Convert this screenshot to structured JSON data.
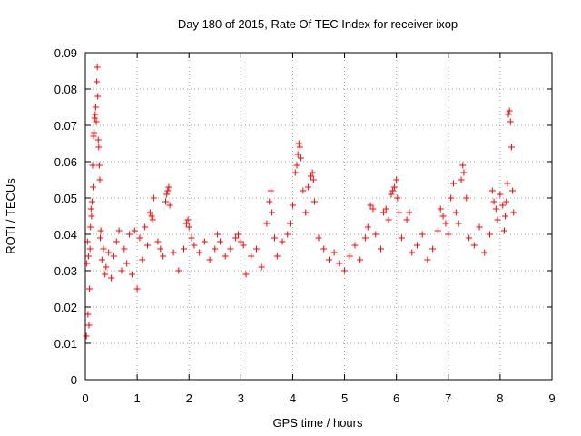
{
  "chart_data": {
    "type": "scatter",
    "title": "Day 180 of 2015, Rate Of TEC Index for receiver ixop",
    "xlabel": "GPS time / hours",
    "ylabel": "ROTI / TECUs",
    "xlim": [
      0,
      9
    ],
    "ylim": [
      0,
      0.09
    ],
    "x_ticks": [
      0,
      1,
      2,
      3,
      4,
      5,
      6,
      7,
      8,
      9
    ],
    "y_ticks": [
      0,
      0.01,
      0.02,
      0.03,
      0.04,
      0.05,
      0.06,
      0.07,
      0.08,
      0.09
    ],
    "x_tick_labels": [
      "0",
      "1",
      "2",
      "3",
      "4",
      "5",
      "6",
      "7",
      "8",
      "9"
    ],
    "y_tick_labels": [
      "0",
      "0.01",
      "0.02",
      "0.03",
      "0.04",
      "0.05",
      "0.06",
      "0.07",
      "0.08",
      "0.09"
    ],
    "grid": true,
    "marker": "plus",
    "color": "#ff0000",
    "series": [
      {
        "name": "ROTI",
        "points": [
          [
            0.02,
            0.012
          ],
          [
            0.03,
            0.032
          ],
          [
            0.04,
            0.038
          ],
          [
            0.05,
            0.018
          ],
          [
            0.06,
            0.034
          ],
          [
            0.07,
            0.015
          ],
          [
            0.08,
            0.025
          ],
          [
            0.09,
            0.036
          ],
          [
            0.1,
            0.042
          ],
          [
            0.11,
            0.047
          ],
          [
            0.12,
            0.045
          ],
          [
            0.13,
            0.049
          ],
          [
            0.14,
            0.059
          ],
          [
            0.15,
            0.053
          ],
          [
            0.16,
            0.067
          ],
          [
            0.17,
            0.068
          ],
          [
            0.18,
            0.072
          ],
          [
            0.19,
            0.073
          ],
          [
            0.2,
            0.075
          ],
          [
            0.21,
            0.071
          ],
          [
            0.22,
            0.082
          ],
          [
            0.23,
            0.086
          ],
          [
            0.24,
            0.078
          ],
          [
            0.25,
            0.066
          ],
          [
            0.26,
            0.064
          ],
          [
            0.27,
            0.059
          ],
          [
            0.28,
            0.055
          ],
          [
            0.29,
            0.039
          ],
          [
            0.3,
            0.041
          ],
          [
            0.32,
            0.033
          ],
          [
            0.35,
            0.036
          ],
          [
            0.38,
            0.029
          ],
          [
            0.4,
            0.031
          ],
          [
            0.45,
            0.035
          ],
          [
            0.5,
            0.028
          ],
          [
            0.55,
            0.034
          ],
          [
            0.6,
            0.038
          ],
          [
            0.65,
            0.041
          ],
          [
            0.7,
            0.03
          ],
          [
            0.75,
            0.036
          ],
          [
            0.8,
            0.032
          ],
          [
            0.85,
            0.04
          ],
          [
            0.9,
            0.029
          ],
          [
            0.95,
            0.041
          ],
          [
            1.0,
            0.025
          ],
          [
            1.05,
            0.039
          ],
          [
            1.1,
            0.033
          ],
          [
            1.15,
            0.042
          ],
          [
            1.2,
            0.037
          ],
          [
            1.25,
            0.046
          ],
          [
            1.28,
            0.045
          ],
          [
            1.3,
            0.044
          ],
          [
            1.32,
            0.05
          ],
          [
            1.4,
            0.038
          ],
          [
            1.45,
            0.036
          ],
          [
            1.5,
            0.034
          ],
          [
            1.55,
            0.049
          ],
          [
            1.57,
            0.051
          ],
          [
            1.59,
            0.052
          ],
          [
            1.61,
            0.053
          ],
          [
            1.63,
            0.048
          ],
          [
            1.7,
            0.035
          ],
          [
            1.8,
            0.03
          ],
          [
            1.9,
            0.036
          ],
          [
            1.95,
            0.043
          ],
          [
            1.98,
            0.044
          ],
          [
            2.0,
            0.042
          ],
          [
            2.05,
            0.039
          ],
          [
            2.1,
            0.037
          ],
          [
            2.2,
            0.035
          ],
          [
            2.3,
            0.038
          ],
          [
            2.4,
            0.033
          ],
          [
            2.5,
            0.036
          ],
          [
            2.55,
            0.04
          ],
          [
            2.6,
            0.038
          ],
          [
            2.7,
            0.034
          ],
          [
            2.8,
            0.036
          ],
          [
            2.9,
            0.039
          ],
          [
            2.95,
            0.04
          ],
          [
            3.0,
            0.038
          ],
          [
            3.05,
            0.037
          ],
          [
            3.1,
            0.029
          ],
          [
            3.2,
            0.034
          ],
          [
            3.3,
            0.036
          ],
          [
            3.4,
            0.031
          ],
          [
            3.5,
            0.043
          ],
          [
            3.55,
            0.049
          ],
          [
            3.58,
            0.052
          ],
          [
            3.6,
            0.046
          ],
          [
            3.65,
            0.039
          ],
          [
            3.7,
            0.034
          ],
          [
            3.8,
            0.038
          ],
          [
            3.9,
            0.04
          ],
          [
            3.95,
            0.043
          ],
          [
            4.0,
            0.048
          ],
          [
            4.05,
            0.057
          ],
          [
            4.08,
            0.059
          ],
          [
            4.1,
            0.062
          ],
          [
            4.12,
            0.065
          ],
          [
            4.14,
            0.064
          ],
          [
            4.16,
            0.061
          ],
          [
            4.2,
            0.052
          ],
          [
            4.25,
            0.046
          ],
          [
            4.3,
            0.053
          ],
          [
            4.35,
            0.056
          ],
          [
            4.38,
            0.057
          ],
          [
            4.4,
            0.055
          ],
          [
            4.42,
            0.049
          ],
          [
            4.5,
            0.039
          ],
          [
            4.6,
            0.036
          ],
          [
            4.7,
            0.033
          ],
          [
            4.8,
            0.035
          ],
          [
            4.9,
            0.032
          ],
          [
            5.0,
            0.03
          ],
          [
            5.1,
            0.034
          ],
          [
            5.2,
            0.037
          ],
          [
            5.3,
            0.033
          ],
          [
            5.4,
            0.039
          ],
          [
            5.45,
            0.042
          ],
          [
            5.5,
            0.048
          ],
          [
            5.55,
            0.047
          ],
          [
            5.6,
            0.04
          ],
          [
            5.7,
            0.036
          ],
          [
            5.75,
            0.046
          ],
          [
            5.8,
            0.047
          ],
          [
            5.85,
            0.044
          ],
          [
            5.9,
            0.051
          ],
          [
            5.93,
            0.052
          ],
          [
            5.96,
            0.053
          ],
          [
            6.0,
            0.055
          ],
          [
            6.02,
            0.05
          ],
          [
            6.05,
            0.046
          ],
          [
            6.1,
            0.039
          ],
          [
            6.2,
            0.044
          ],
          [
            6.25,
            0.046
          ],
          [
            6.3,
            0.035
          ],
          [
            6.4,
            0.037
          ],
          [
            6.5,
            0.04
          ],
          [
            6.6,
            0.033
          ],
          [
            6.7,
            0.036
          ],
          [
            6.8,
            0.041
          ],
          [
            6.85,
            0.047
          ],
          [
            6.9,
            0.045
          ],
          [
            6.95,
            0.043
          ],
          [
            7.0,
            0.04
          ],
          [
            7.05,
            0.05
          ],
          [
            7.1,
            0.054
          ],
          [
            7.15,
            0.046
          ],
          [
            7.2,
            0.043
          ],
          [
            7.25,
            0.055
          ],
          [
            7.28,
            0.059
          ],
          [
            7.3,
            0.057
          ],
          [
            7.35,
            0.05
          ],
          [
            7.4,
            0.039
          ],
          [
            7.5,
            0.037
          ],
          [
            7.6,
            0.042
          ],
          [
            7.7,
            0.035
          ],
          [
            7.8,
            0.04
          ],
          [
            7.85,
            0.052
          ],
          [
            7.88,
            0.049
          ],
          [
            7.92,
            0.047
          ],
          [
            7.95,
            0.044
          ],
          [
            8.0,
            0.051
          ],
          [
            8.05,
            0.048
          ],
          [
            8.08,
            0.041
          ],
          [
            8.1,
            0.045
          ],
          [
            8.12,
            0.049
          ],
          [
            8.14,
            0.054
          ],
          [
            8.16,
            0.073
          ],
          [
            8.18,
            0.074
          ],
          [
            8.2,
            0.071
          ],
          [
            8.22,
            0.064
          ],
          [
            8.24,
            0.052
          ],
          [
            8.26,
            0.046
          ]
        ]
      }
    ]
  }
}
